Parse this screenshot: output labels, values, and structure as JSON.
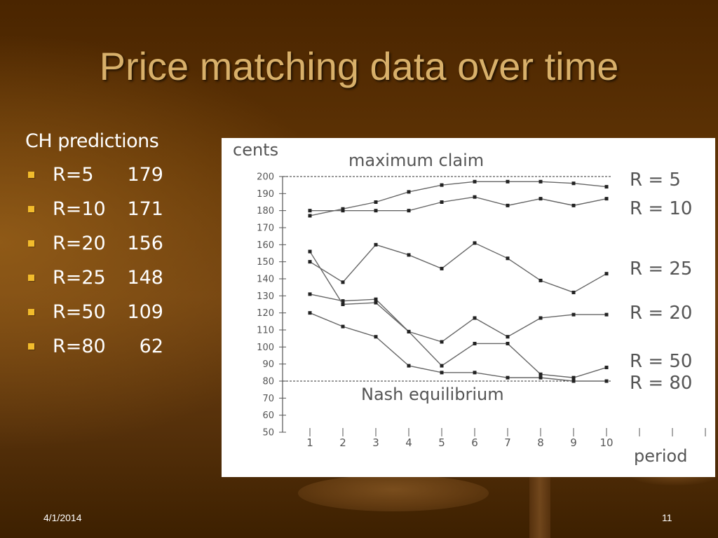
{
  "slide": {
    "title": "Price matching data over time",
    "date": "4/1/2014",
    "page_number": "11"
  },
  "predictions": {
    "heading": "CH predictions",
    "items": [
      {
        "label": "R=5",
        "value": "179"
      },
      {
        "label": "R=10",
        "value": "171"
      },
      {
        "label": "R=20",
        "value": "156"
      },
      {
        "label": "R=25",
        "value": "148"
      },
      {
        "label": "R=50",
        "value": "109"
      },
      {
        "label": "R=80",
        "value": "62"
      }
    ]
  },
  "chart_data": {
    "type": "line",
    "ylabel": "cents",
    "xlabel": "period",
    "x": [
      1,
      2,
      3,
      4,
      5,
      6,
      7,
      8,
      9,
      10
    ],
    "ylim": [
      50,
      200
    ],
    "yticks": [
      50,
      60,
      70,
      80,
      90,
      100,
      110,
      120,
      130,
      140,
      150,
      160,
      170,
      180,
      190,
      200
    ],
    "reference_lines": [
      {
        "label": "maximum claim",
        "y": 200
      },
      {
        "label": "Nash equilibrium",
        "y": 80
      }
    ],
    "series": [
      {
        "name": "R = 5",
        "values": [
          177,
          181,
          185,
          191,
          195,
          197,
          197,
          197,
          196,
          194
        ]
      },
      {
        "name": "R = 10",
        "values": [
          180,
          180,
          180,
          180,
          185,
          188,
          183,
          187,
          183,
          187
        ]
      },
      {
        "name": "R = 25",
        "values": [
          150,
          138,
          160,
          154,
          146,
          161,
          152,
          139,
          132,
          143
        ]
      },
      {
        "name": "R = 20",
        "values": [
          131,
          127,
          128,
          109,
          103,
          117,
          106,
          117,
          119,
          119
        ]
      },
      {
        "name": "R = 50",
        "values": [
          156,
          125,
          126,
          109,
          89,
          102,
          102,
          84,
          82,
          88
        ]
      },
      {
        "name": "R = 80",
        "values": [
          120,
          112,
          106,
          89,
          85,
          85,
          82,
          82,
          80,
          80
        ]
      }
    ]
  }
}
